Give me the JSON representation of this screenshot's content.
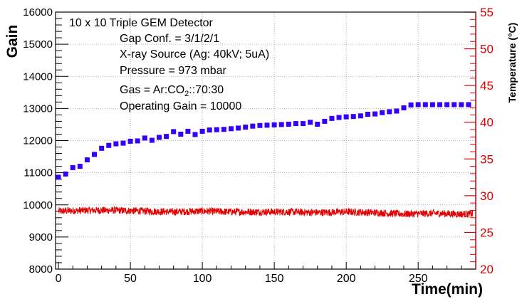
{
  "chart_data": {
    "type": "scatter",
    "title": "10 x 10 Triple GEM Detector",
    "annotations": [
      {
        "text": "Gap Conf. = 3/1/2/1"
      },
      {
        "text": "X-ray Source (Ag: 40kV; 5uA)"
      },
      {
        "text": "Pressure = 973 mbar"
      },
      {
        "text_pre": "Gas = Ar:CO",
        "text_sub": "2",
        "text_post": "::70:30"
      },
      {
        "text": "Operating Gain = 10000"
      }
    ],
    "xlabel": "Time(min)",
    "ylabel": "Gain",
    "y2label": "Temperature (°C)",
    "xlim": [
      -2,
      290
    ],
    "ylim": [
      8000,
      16000
    ],
    "y2lim": [
      20,
      55
    ],
    "x_ticks": [
      "0",
      "50",
      "100",
      "150",
      "200",
      "250"
    ],
    "y_ticks": [
      "8000",
      "9000",
      "10000",
      "11000",
      "12000",
      "13000",
      "14000",
      "15000",
      "16000"
    ],
    "y2_ticks": [
      "20",
      "25",
      "30",
      "35",
      "40",
      "45",
      "50",
      "55"
    ],
    "grid": true,
    "series": [
      {
        "name": "Gain",
        "axis": "left",
        "color": "#3300ff",
        "marker": "square",
        "x": [
          0,
          5,
          10,
          15,
          20,
          25,
          30,
          35,
          40,
          45,
          50,
          55,
          60,
          65,
          70,
          75,
          80,
          85,
          90,
          95,
          100,
          105,
          110,
          115,
          120,
          125,
          130,
          135,
          140,
          145,
          150,
          155,
          160,
          165,
          170,
          175,
          180,
          185,
          190,
          195,
          200,
          205,
          210,
          215,
          220,
          225,
          230,
          235,
          240,
          245,
          250,
          255,
          260,
          265,
          270,
          275,
          280,
          285
        ],
        "values": [
          10860,
          10960,
          11160,
          11200,
          11400,
          11570,
          11760,
          11850,
          11900,
          11920,
          11980,
          11990,
          12080,
          12010,
          12100,
          12130,
          12280,
          12200,
          12290,
          12190,
          12290,
          12330,
          12340,
          12350,
          12370,
          12390,
          12420,
          12450,
          12470,
          12480,
          12490,
          12500,
          12510,
          12530,
          12530,
          12570,
          12510,
          12600,
          12690,
          12720,
          12740,
          12750,
          12770,
          12820,
          12830,
          12870,
          12900,
          12920,
          13020,
          13110,
          13120,
          13120,
          13120,
          13120,
          13120,
          13120,
          13120,
          13120
        ]
      },
      {
        "name": "Temperature",
        "axis": "right",
        "color": "#e00000",
        "marker": "line",
        "x": [
          0,
          20,
          40,
          60,
          80,
          100,
          120,
          140,
          160,
          180,
          200,
          220,
          240,
          260,
          280,
          288
        ],
        "values": [
          27.9,
          28.0,
          28.0,
          27.9,
          27.8,
          27.9,
          27.8,
          27.8,
          27.8,
          27.7,
          27.8,
          27.7,
          27.5,
          27.6,
          27.5,
          27.5
        ],
        "noise_amplitude": 0.5
      }
    ]
  }
}
